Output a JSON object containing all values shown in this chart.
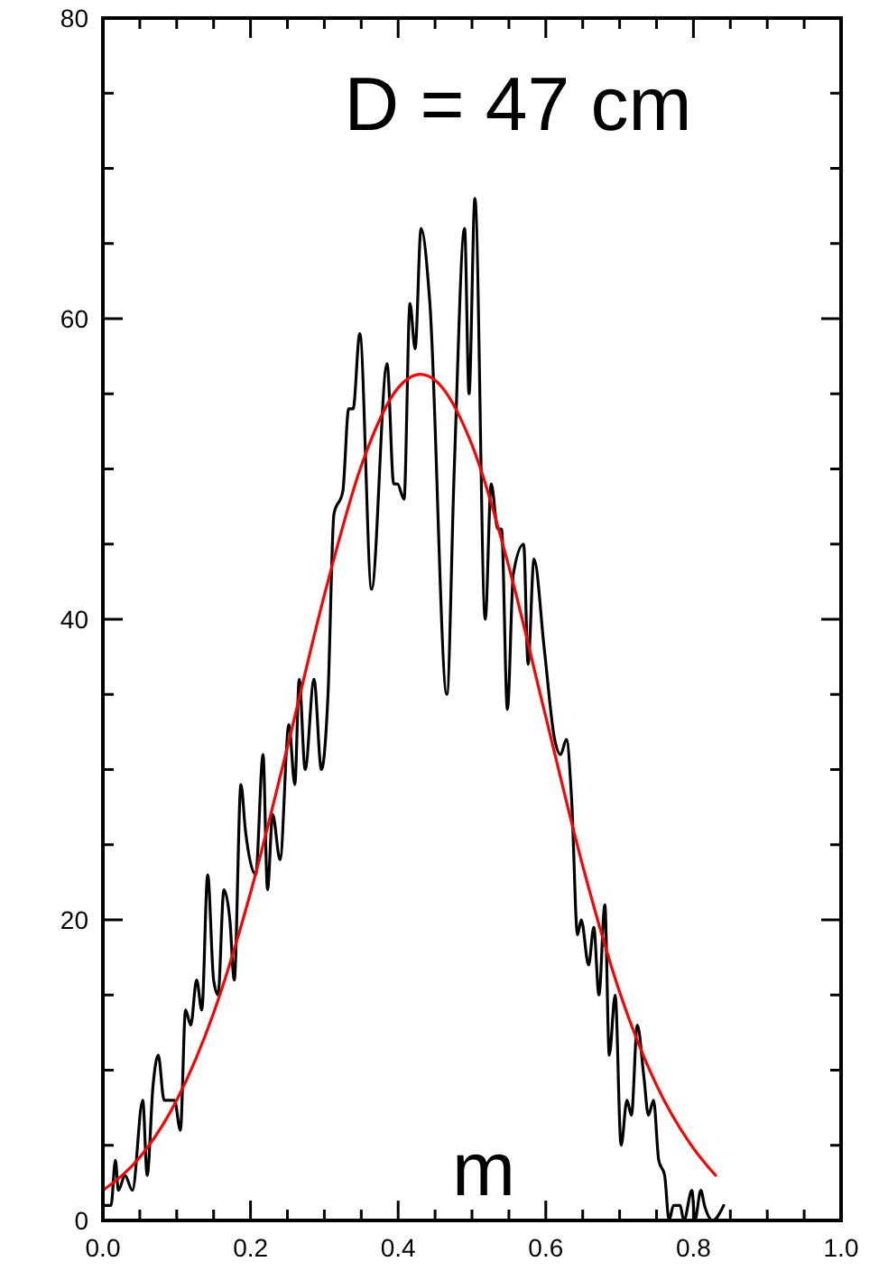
{
  "chart_data": {
    "type": "line",
    "title": "D = 47 cm",
    "xlabel": "m",
    "xlim": [
      0,
      1
    ],
    "ylim": [
      0,
      80
    ],
    "xticks": [
      {
        "value": 0,
        "label": "0.0"
      },
      {
        "value": 0.05,
        "label": null
      },
      {
        "value": 0.1,
        "label": null
      },
      {
        "value": 0.15,
        "label": null
      },
      {
        "value": 0.2,
        "label": "0.2"
      },
      {
        "value": 0.25,
        "label": null
      },
      {
        "value": 0.3,
        "label": null
      },
      {
        "value": 0.35,
        "label": null
      },
      {
        "value": 0.4,
        "label": "0.4"
      },
      {
        "value": 0.45,
        "label": null
      },
      {
        "value": 0.5,
        "label": null
      },
      {
        "value": 0.55,
        "label": null
      },
      {
        "value": 0.6,
        "label": "0.6"
      },
      {
        "value": 0.65,
        "label": null
      },
      {
        "value": 0.7,
        "label": null
      },
      {
        "value": 0.75,
        "label": null
      },
      {
        "value": 0.8,
        "label": "0.8"
      },
      {
        "value": 0.85,
        "label": null
      },
      {
        "value": 0.9,
        "label": null
      },
      {
        "value": 0.95,
        "label": null
      },
      {
        "value": 1,
        "label": "1.0"
      }
    ],
    "yticks": [
      0,
      {
        "value": 5,
        "label": null
      },
      {
        "value": 10,
        "label": null
      },
      {
        "value": 15,
        "label": null
      },
      20,
      {
        "value": 25,
        "label": null
      },
      {
        "value": 30,
        "label": null
      },
      {
        "value": 35,
        "label": null
      },
      40,
      {
        "value": 45,
        "label": null
      },
      {
        "value": 50,
        "label": null
      },
      {
        "value": 55,
        "label": null
      },
      60,
      {
        "value": 65,
        "label": null
      },
      {
        "value": 70,
        "label": null
      },
      {
        "value": 75,
        "label": null
      },
      80
    ],
    "grid": false,
    "marker": "none",
    "line_style": "solid",
    "series": [
      {
        "color": "#000000",
        "x": [
          0,
          0.011,
          0.017,
          0.021,
          0.03,
          0.04,
          0.054,
          0.06,
          0.068,
          0.075,
          0.083,
          0.097,
          0.105,
          0.112,
          0.119,
          0.127,
          0.134,
          0.142,
          0.15,
          0.156,
          0.164,
          0.172,
          0.178,
          0.187,
          0.193,
          0.207,
          0.217,
          0.223,
          0.23,
          0.24,
          0.252,
          0.26,
          0.266,
          0.274,
          0.286,
          0.296,
          0.305,
          0.313,
          0.325,
          0.333,
          0.339,
          0.348,
          0.364,
          0.385,
          0.394,
          0.399,
          0.408,
          0.416,
          0.423,
          0.431,
          0.443,
          0.466,
          0.476,
          0.49,
          0.496,
          0.504,
          0.518,
          0.526,
          0.535,
          0.54,
          0.548,
          0.556,
          0.57,
          0.576,
          0.584,
          0.598,
          0.612,
          0.62,
          0.628,
          0.635,
          0.643,
          0.648,
          0.658,
          0.665,
          0.672,
          0.68,
          0.686,
          0.694,
          0.702,
          0.71,
          0.716,
          0.724,
          0.733,
          0.739,
          0.746,
          0.753,
          0.761,
          0.767,
          0.773,
          0.782,
          0.787,
          0.798,
          0.802,
          0.81,
          0.815,
          0.826,
          0.841
        ],
        "values": [
          1,
          1,
          4,
          2,
          3,
          2,
          8,
          3,
          9,
          11,
          8,
          8,
          6,
          14,
          13,
          16,
          14,
          23,
          16,
          15,
          22,
          20,
          16,
          29,
          26,
          23,
          31,
          22,
          27,
          24,
          33,
          29,
          36,
          30,
          36,
          30,
          35,
          47,
          48.5,
          54,
          54,
          59,
          42,
          57,
          49,
          49,
          48,
          61,
          58,
          66,
          61,
          35,
          50,
          66,
          55,
          68,
          40,
          49,
          46,
          46,
          34,
          43,
          45,
          37,
          44,
          38,
          32,
          31,
          32,
          28,
          19,
          20,
          17,
          19.5,
          15,
          21,
          11,
          15,
          5,
          8,
          7,
          13,
          9.5,
          7,
          8,
          4,
          3,
          0,
          1,
          1,
          0,
          2,
          0,
          2,
          1,
          0,
          1
        ]
      },
      {
        "color": "#ff0000",
        "x": [
          0,
          0.05,
          0.1,
          0.15,
          0.2,
          0.25,
          0.3,
          0.35,
          0.4,
          0.43,
          0.45,
          0.5,
          0.55,
          0.6,
          0.65,
          0.7,
          0.75,
          0.8,
          0.83
        ],
        "values": [
          2,
          4.2,
          8,
          13.8,
          21.8,
          31.5,
          41.6,
          50.2,
          55.4,
          56.3,
          55.9,
          51.6,
          43.5,
          33.5,
          23.6,
          15.2,
          9,
          4.8,
          3
        ]
      }
    ]
  }
}
